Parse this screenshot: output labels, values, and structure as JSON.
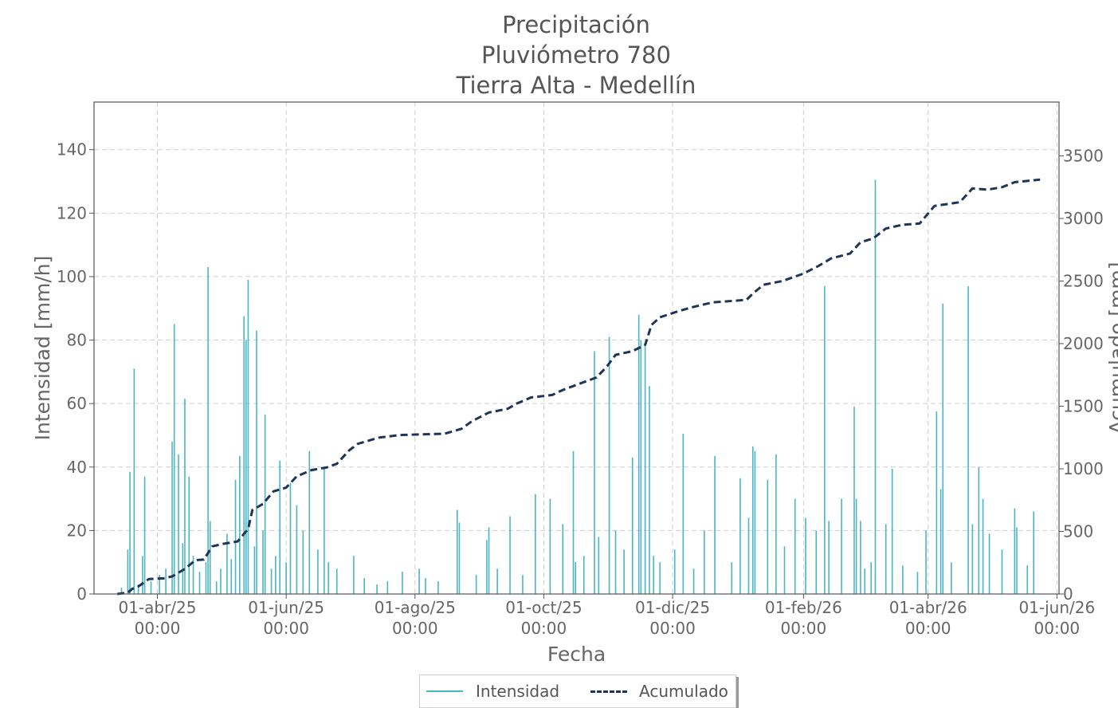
{
  "colors": {
    "intensidad": "#4ab5c4",
    "acumulado": "#1f3459",
    "grid": "#cfcfcf",
    "text": "#555555"
  },
  "chart_data": {
    "type": "bar+line",
    "title_lines": [
      "Precipitación",
      "Pluviómetro 780",
      "Tierra Alta - Medellín"
    ],
    "xlabel": "Fecha",
    "ylabel_left": "Intensidad [mm/h]",
    "ylabel_right": "Acumulado [mm]",
    "y_left_range": [
      0,
      155
    ],
    "y_right_range": [
      0,
      3930
    ],
    "y_left_ticks": [
      0,
      20,
      40,
      60,
      80,
      100,
      120,
      140
    ],
    "y_right_ticks": [
      0,
      500,
      1000,
      1500,
      2000,
      2500,
      3000,
      3500
    ],
    "x_range": [
      "2025-03-02",
      "2026-06-02"
    ],
    "x_ticks": [
      {
        "date": "2025-04-01",
        "label1": "01-abr/25",
        "label2": "00:00"
      },
      {
        "date": "2025-06-01",
        "label1": "01-jun/25",
        "label2": "00:00"
      },
      {
        "date": "2025-08-01",
        "label1": "01-ago/25",
        "label2": "00:00"
      },
      {
        "date": "2025-10-01",
        "label1": "01-oct/25",
        "label2": "00:00"
      },
      {
        "date": "2025-12-01",
        "label1": "01-dic/25",
        "label2": "00:00"
      },
      {
        "date": "2026-02-01",
        "label1": "01-feb/26",
        "label2": "00:00"
      },
      {
        "date": "2026-04-01",
        "label1": "01-abr/26",
        "label2": "00:00"
      },
      {
        "date": "2026-06-01",
        "label1": "01-jun/26",
        "label2": "00:00"
      }
    ],
    "grid": true,
    "legend_position": "bottom-center",
    "series": [
      {
        "name": "Intensidad",
        "type": "bar",
        "points": [
          [
            "2025-03-15",
            2
          ],
          [
            "2025-03-18",
            14
          ],
          [
            "2025-03-19",
            38.5
          ],
          [
            "2025-03-21",
            71
          ],
          [
            "2025-03-23",
            3
          ],
          [
            "2025-03-25",
            12
          ],
          [
            "2025-03-26",
            37
          ],
          [
            "2025-03-29",
            4
          ],
          [
            "2025-04-02",
            6
          ],
          [
            "2025-04-05",
            8
          ],
          [
            "2025-04-08",
            48
          ],
          [
            "2025-04-09",
            85
          ],
          [
            "2025-04-11",
            44
          ],
          [
            "2025-04-13",
            16
          ],
          [
            "2025-04-14",
            61.5
          ],
          [
            "2025-04-16",
            37
          ],
          [
            "2025-04-18",
            12
          ],
          [
            "2025-04-21",
            7
          ],
          [
            "2025-04-24",
            10
          ],
          [
            "2025-04-25",
            103
          ],
          [
            "2025-04-26",
            23
          ],
          [
            "2025-04-29",
            4
          ],
          [
            "2025-05-01",
            8
          ],
          [
            "2025-05-04",
            19
          ],
          [
            "2025-05-06",
            11
          ],
          [
            "2025-05-08",
            36
          ],
          [
            "2025-05-10",
            43.5
          ],
          [
            "2025-05-12",
            87.5
          ],
          [
            "2025-05-13",
            80
          ],
          [
            "2025-05-14",
            99
          ],
          [
            "2025-05-17",
            15
          ],
          [
            "2025-05-18",
            83
          ],
          [
            "2025-05-21",
            20
          ],
          [
            "2025-05-22",
            56.5
          ],
          [
            "2025-05-25",
            8
          ],
          [
            "2025-05-27",
            12
          ],
          [
            "2025-05-29",
            42
          ],
          [
            "2025-06-01",
            10
          ],
          [
            "2025-06-03",
            35
          ],
          [
            "2025-06-06",
            28
          ],
          [
            "2025-06-09",
            20
          ],
          [
            "2025-06-12",
            45
          ],
          [
            "2025-06-16",
            14
          ],
          [
            "2025-06-19",
            40
          ],
          [
            "2025-06-21",
            10
          ],
          [
            "2025-06-25",
            8
          ],
          [
            "2025-07-03",
            12
          ],
          [
            "2025-07-08",
            5
          ],
          [
            "2025-07-14",
            3
          ],
          [
            "2025-07-19",
            4
          ],
          [
            "2025-07-26",
            7
          ],
          [
            "2025-08-03",
            8
          ],
          [
            "2025-08-06",
            5
          ],
          [
            "2025-08-12",
            4
          ],
          [
            "2025-08-21",
            26.5
          ],
          [
            "2025-08-22",
            22.5
          ],
          [
            "2025-08-30",
            6
          ],
          [
            "2025-09-04",
            17
          ],
          [
            "2025-09-05",
            21
          ],
          [
            "2025-09-09",
            8
          ],
          [
            "2025-09-15",
            24.5
          ],
          [
            "2025-09-21",
            6
          ],
          [
            "2025-09-27",
            31.5
          ],
          [
            "2025-10-04",
            30
          ],
          [
            "2025-10-10",
            22
          ],
          [
            "2025-10-15",
            45
          ],
          [
            "2025-10-16",
            10
          ],
          [
            "2025-10-20",
            12
          ],
          [
            "2025-10-25",
            76.5
          ],
          [
            "2025-10-27",
            18
          ],
          [
            "2025-11-01",
            81
          ],
          [
            "2025-11-04",
            20
          ],
          [
            "2025-11-08",
            14
          ],
          [
            "2025-11-12",
            43
          ],
          [
            "2025-11-15",
            88
          ],
          [
            "2025-11-16",
            80
          ],
          [
            "2025-11-18",
            78
          ],
          [
            "2025-11-20",
            65.5
          ],
          [
            "2025-11-22",
            12
          ],
          [
            "2025-11-25",
            10
          ],
          [
            "2025-12-02",
            14
          ],
          [
            "2025-12-06",
            50.5
          ],
          [
            "2025-12-11",
            8
          ],
          [
            "2025-12-16",
            20
          ],
          [
            "2025-12-21",
            43.5
          ],
          [
            "2025-12-29",
            10
          ],
          [
            "2026-01-02",
            36.5
          ],
          [
            "2026-01-06",
            24
          ],
          [
            "2026-01-08",
            46.5
          ],
          [
            "2026-01-09",
            45
          ],
          [
            "2026-01-15",
            36
          ],
          [
            "2026-01-19",
            44
          ],
          [
            "2026-01-23",
            15
          ],
          [
            "2026-01-28",
            30
          ],
          [
            "2026-02-02",
            24
          ],
          [
            "2026-02-07",
            20
          ],
          [
            "2026-02-11",
            97
          ],
          [
            "2026-02-13",
            23
          ],
          [
            "2026-02-19",
            30
          ],
          [
            "2026-02-25",
            59
          ],
          [
            "2026-02-26",
            30
          ],
          [
            "2026-02-28",
            23
          ],
          [
            "2026-03-02",
            8
          ],
          [
            "2026-03-05",
            10
          ],
          [
            "2026-03-07",
            130.5
          ],
          [
            "2026-03-12",
            22
          ],
          [
            "2026-03-15",
            39.5
          ],
          [
            "2026-03-20",
            9
          ],
          [
            "2026-03-27",
            7
          ],
          [
            "2026-03-31",
            20
          ],
          [
            "2026-04-05",
            57.5
          ],
          [
            "2026-04-07",
            33
          ],
          [
            "2026-04-08",
            91.5
          ],
          [
            "2026-04-12",
            10
          ],
          [
            "2026-04-20",
            97
          ],
          [
            "2026-04-22",
            22
          ],
          [
            "2026-04-25",
            40
          ],
          [
            "2026-04-27",
            30
          ],
          [
            "2026-04-30",
            19
          ],
          [
            "2026-05-06",
            14
          ],
          [
            "2026-05-12",
            27
          ],
          [
            "2026-05-13",
            21
          ],
          [
            "2026-05-18",
            9
          ],
          [
            "2026-05-21",
            26
          ]
        ]
      },
      {
        "name": "Acumulado",
        "type": "line",
        "points": [
          [
            "2025-03-13",
            0
          ],
          [
            "2025-03-18",
            10
          ],
          [
            "2025-03-20",
            40
          ],
          [
            "2025-03-23",
            60
          ],
          [
            "2025-03-28",
            120
          ],
          [
            "2025-04-04",
            125
          ],
          [
            "2025-04-08",
            140
          ],
          [
            "2025-04-14",
            200
          ],
          [
            "2025-04-19",
            270
          ],
          [
            "2025-04-23",
            275
          ],
          [
            "2025-04-27",
            380
          ],
          [
            "2025-05-02",
            400
          ],
          [
            "2025-05-09",
            420
          ],
          [
            "2025-05-14",
            520
          ],
          [
            "2025-05-16",
            670
          ],
          [
            "2025-05-21",
            720
          ],
          [
            "2025-05-26",
            820
          ],
          [
            "2025-06-01",
            850
          ],
          [
            "2025-06-06",
            940
          ],
          [
            "2025-06-13",
            990
          ],
          [
            "2025-06-20",
            1010
          ],
          [
            "2025-06-25",
            1040
          ],
          [
            "2025-07-01",
            1150
          ],
          [
            "2025-07-05",
            1200
          ],
          [
            "2025-07-15",
            1250
          ],
          [
            "2025-07-25",
            1270
          ],
          [
            "2025-08-15",
            1280
          ],
          [
            "2025-08-23",
            1320
          ],
          [
            "2025-08-28",
            1380
          ],
          [
            "2025-09-05",
            1450
          ],
          [
            "2025-09-14",
            1480
          ],
          [
            "2025-09-18",
            1520
          ],
          [
            "2025-09-25",
            1570
          ],
          [
            "2025-10-05",
            1590
          ],
          [
            "2025-10-10",
            1630
          ],
          [
            "2025-10-18",
            1680
          ],
          [
            "2025-10-26",
            1730
          ],
          [
            "2025-10-31",
            1820
          ],
          [
            "2025-11-04",
            1910
          ],
          [
            "2025-11-12",
            1940
          ],
          [
            "2025-11-18",
            1990
          ],
          [
            "2025-11-21",
            2150
          ],
          [
            "2025-11-25",
            2210
          ],
          [
            "2025-12-02",
            2250
          ],
          [
            "2025-12-10",
            2290
          ],
          [
            "2025-12-20",
            2330
          ],
          [
            "2026-01-05",
            2350
          ],
          [
            "2026-01-08",
            2400
          ],
          [
            "2026-01-13",
            2470
          ],
          [
            "2026-01-22",
            2500
          ],
          [
            "2026-02-01",
            2560
          ],
          [
            "2026-02-08",
            2620
          ],
          [
            "2026-02-14",
            2680
          ],
          [
            "2026-02-23",
            2720
          ],
          [
            "2026-02-28",
            2810
          ],
          [
            "2026-03-06",
            2840
          ],
          [
            "2026-03-12",
            2920
          ],
          [
            "2026-03-20",
            2950
          ],
          [
            "2026-03-28",
            2960
          ],
          [
            "2026-04-04",
            3100
          ],
          [
            "2026-04-12",
            3120
          ],
          [
            "2026-04-16",
            3130
          ],
          [
            "2026-04-22",
            3240
          ],
          [
            "2026-04-29",
            3230
          ],
          [
            "2026-05-06",
            3250
          ],
          [
            "2026-05-12",
            3290
          ],
          [
            "2026-05-24",
            3310
          ]
        ]
      }
    ]
  }
}
